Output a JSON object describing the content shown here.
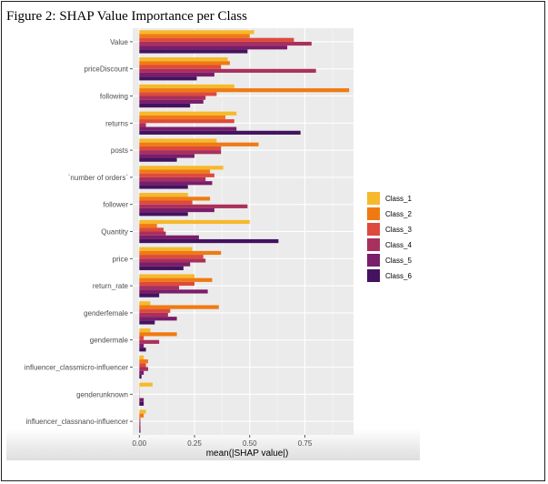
{
  "figure": {
    "title": "Figure 2: SHAP Value Importance per Class"
  },
  "chart_data": {
    "type": "bar",
    "orientation": "horizontal",
    "xlabel": "mean(|SHAP value|)",
    "ylabel": "",
    "xlim": [
      -0.03,
      0.97
    ],
    "xticks": [
      0.0,
      0.25,
      0.5,
      0.75
    ],
    "xtick_labels": [
      "0.00",
      "0.25",
      "0.50",
      "0.75"
    ],
    "grid": true,
    "legend_position": "right",
    "categories": [
      "Value",
      "priceDiscount",
      "following",
      "returns",
      "posts",
      "`number of orders`",
      "follower",
      "Quantity",
      "price",
      "return_rate",
      "genderfemale",
      "gendermale",
      "influencer_classmicro-influencer",
      "genderunknown",
      "influencer_classnano-influencer"
    ],
    "series": [
      {
        "name": "Class_1",
        "color": "#f6b92b",
        "values": [
          0.52,
          0.4,
          0.43,
          0.44,
          0.35,
          0.38,
          0.22,
          0.5,
          0.24,
          0.25,
          0.05,
          0.05,
          0.02,
          0.06,
          0.03
        ]
      },
      {
        "name": "Class_2",
        "color": "#f07a12",
        "values": [
          0.5,
          0.41,
          0.95,
          0.39,
          0.54,
          0.32,
          0.32,
          0.08,
          0.37,
          0.33,
          0.36,
          0.17,
          0.04,
          0.0,
          0.02
        ]
      },
      {
        "name": "Class_3",
        "color": "#dd4a3d",
        "values": [
          0.7,
          0.37,
          0.35,
          0.43,
          0.37,
          0.34,
          0.24,
          0.11,
          0.29,
          0.25,
          0.14,
          0.02,
          0.03,
          0.0,
          0.005
        ]
      },
      {
        "name": "Class_4",
        "color": "#a9305c",
        "values": [
          0.78,
          0.8,
          0.3,
          0.03,
          0.37,
          0.3,
          0.49,
          0.12,
          0.3,
          0.18,
          0.13,
          0.09,
          0.04,
          0.0,
          0.005
        ]
      },
      {
        "name": "Class_5",
        "color": "#7a1d6a",
        "values": [
          0.67,
          0.34,
          0.29,
          0.44,
          0.25,
          0.33,
          0.34,
          0.27,
          0.23,
          0.31,
          0.17,
          0.02,
          0.02,
          0.02,
          0.005
        ]
      },
      {
        "name": "Class_6",
        "color": "#44125f",
        "values": [
          0.49,
          0.26,
          0.23,
          0.73,
          0.17,
          0.22,
          0.22,
          0.63,
          0.2,
          0.09,
          0.07,
          0.03,
          0.01,
          0.02,
          0.005
        ]
      }
    ]
  }
}
